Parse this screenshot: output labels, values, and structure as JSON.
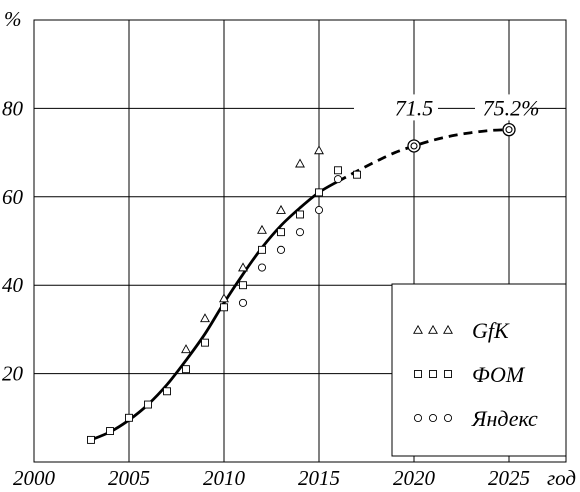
{
  "chart_data": {
    "type": "scatter",
    "ylabel": "%",
    "xlabel": "год",
    "xlim": [
      2000,
      2028
    ],
    "ylim": [
      0,
      100
    ],
    "x_ticks": [
      2000,
      2005,
      2010,
      2015,
      2020,
      2025
    ],
    "y_ticks": [
      20,
      40,
      60,
      80
    ],
    "grid": true,
    "legend_placement": "bottom-right",
    "series": [
      {
        "name": "GfK",
        "marker": "triangle",
        "points": [
          [
            2008,
            25.5
          ],
          [
            2009,
            32.5
          ],
          [
            2010,
            37
          ],
          [
            2011,
            44
          ],
          [
            2012,
            52.5
          ],
          [
            2013,
            57
          ],
          [
            2014,
            67.5
          ],
          [
            2015,
            70.5
          ]
        ]
      },
      {
        "name": "ФОМ",
        "marker": "square",
        "points": [
          [
            2003,
            5
          ],
          [
            2004,
            7
          ],
          [
            2005,
            10
          ],
          [
            2006,
            13
          ],
          [
            2007,
            16
          ],
          [
            2008,
            21
          ],
          [
            2009,
            27
          ],
          [
            2010,
            35
          ],
          [
            2011,
            40
          ],
          [
            2012,
            48
          ],
          [
            2013,
            52
          ],
          [
            2014,
            56
          ],
          [
            2015,
            61
          ],
          [
            2016,
            66
          ],
          [
            2017,
            65
          ]
        ]
      },
      {
        "name": "Яндекс",
        "marker": "circle",
        "points": [
          [
            2011,
            36
          ],
          [
            2012,
            44
          ],
          [
            2013,
            48
          ],
          [
            2014,
            52
          ],
          [
            2015,
            57
          ],
          [
            2016,
            64
          ]
        ]
      }
    ],
    "trend": {
      "solid": [
        [
          2003,
          5
        ],
        [
          2004,
          6.8
        ],
        [
          2005,
          9.5
        ],
        [
          2006,
          13
        ],
        [
          2007,
          17.5
        ],
        [
          2008,
          23
        ],
        [
          2009,
          29
        ],
        [
          2010,
          36
        ],
        [
          2011,
          42.5
        ],
        [
          2012,
          48.5
        ],
        [
          2013,
          53.5
        ],
        [
          2014,
          57.5
        ],
        [
          2015,
          61
        ],
        [
          2016,
          63.5
        ]
      ],
      "dashed": [
        [
          2016,
          63.5
        ],
        [
          2017,
          65.8
        ],
        [
          2018,
          68
        ],
        [
          2019,
          70
        ],
        [
          2020,
          71.5
        ],
        [
          2021,
          72.8
        ],
        [
          2022,
          73.8
        ],
        [
          2023,
          74.5
        ],
        [
          2024,
          75
        ],
        [
          2025,
          75.2
        ]
      ],
      "forecast_points": [
        [
          2020,
          71.5
        ],
        [
          2025,
          75.2
        ]
      ]
    },
    "annotations": [
      {
        "text": "71.5",
        "x": 2020,
        "y": 71.5
      },
      {
        "text": "75.2%",
        "x": 2025,
        "y": 75.2
      }
    ],
    "ytick_labels": [
      "20",
      "40",
      "60",
      "80"
    ],
    "xtick_labels": [
      "2000",
      "2005",
      "2010",
      "2015",
      "2020",
      "2025"
    ]
  }
}
